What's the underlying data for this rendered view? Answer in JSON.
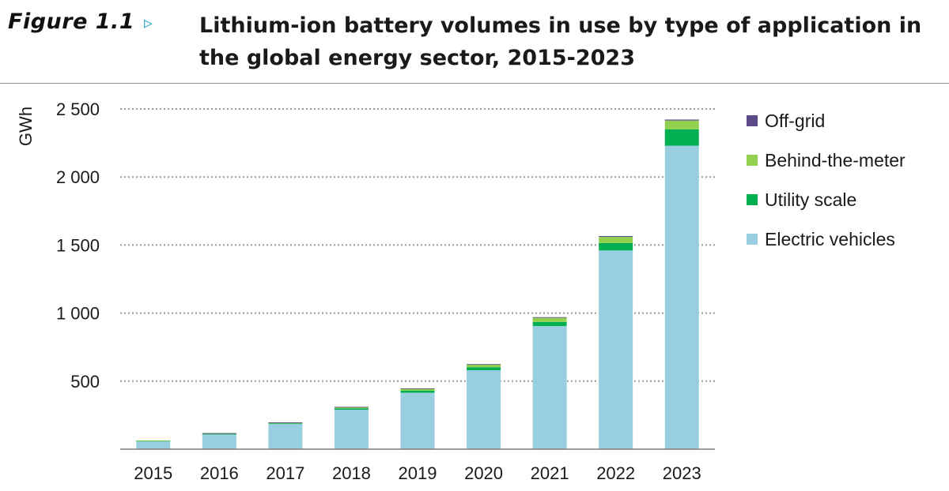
{
  "header": {
    "figure_label": "Figure 1.1",
    "arrow": "▹",
    "title": "Lithium-ion battery volumes in use by type of application in the global energy sector, 2015-2023"
  },
  "chart_data": {
    "type": "bar",
    "stacked": true,
    "title": "Lithium-ion battery volumes in use by type of application in the global energy sector, 2015-2023",
    "ylabel": "GWh",
    "xlabel": "",
    "ylim": [
      0,
      2500
    ],
    "yticks": [
      500,
      1000,
      1500,
      2000,
      2500
    ],
    "ytick_labels": [
      "500",
      "1 000",
      "1 500",
      "2 000",
      "2 500"
    ],
    "grid": "horizontal dotted",
    "legend_position": "right",
    "categories": [
      "2015",
      "2016",
      "2017",
      "2018",
      "2019",
      "2020",
      "2021",
      "2022",
      "2023"
    ],
    "series": [
      {
        "name": "Electric vehicles",
        "color": "#98cedf",
        "values": [
          60,
          110,
          185,
          290,
          415,
          580,
          905,
          1460,
          2230
        ]
      },
      {
        "name": "Utility scale",
        "color": "#00b050",
        "values": [
          2,
          3,
          5,
          10,
          15,
          22,
          30,
          55,
          120
        ]
      },
      {
        "name": "Behind-the-meter",
        "color": "#92d050",
        "values": [
          2,
          4,
          6,
          10,
          15,
          20,
          30,
          45,
          65
        ]
      },
      {
        "name": "Off-grid",
        "color": "#5c4a8a",
        "values": [
          0,
          1,
          1,
          1,
          2,
          3,
          5,
          6,
          7
        ]
      }
    ],
    "legend_order": [
      "Off-grid",
      "Behind-the-meter",
      "Utility scale",
      "Electric vehicles"
    ]
  }
}
